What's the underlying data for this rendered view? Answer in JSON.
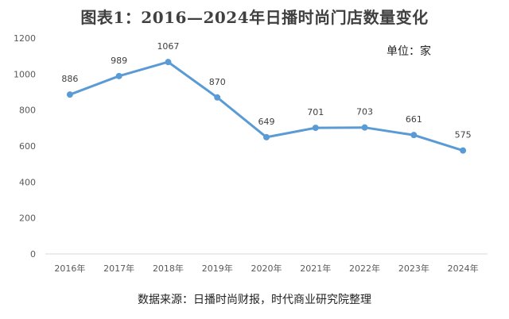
{
  "chart_data": {
    "type": "line",
    "title": "图表1：2016—2024年日播时尚门店数量变化",
    "unit_note": "单位：家",
    "source": "数据来源：日播时尚财报，时代商业研究院整理",
    "categories": [
      "2016年",
      "2017年",
      "2018年",
      "2019年",
      "2020年",
      "2021年",
      "2022年",
      "2023年",
      "2024年"
    ],
    "values": [
      886,
      989,
      1067,
      870,
      649,
      701,
      703,
      661,
      575
    ],
    "data_labels": [
      "886",
      "989",
      "1067",
      "870",
      "649",
      "701",
      "703",
      "661",
      "575"
    ],
    "ylim": [
      0,
      1200
    ],
    "yticks": [
      "0",
      "200",
      "400",
      "600",
      "800",
      "1000",
      "1200"
    ],
    "grid": false,
    "legend": "none",
    "colors": {
      "line": "#5b9bd5",
      "axis": "#d9d9d9"
    }
  }
}
